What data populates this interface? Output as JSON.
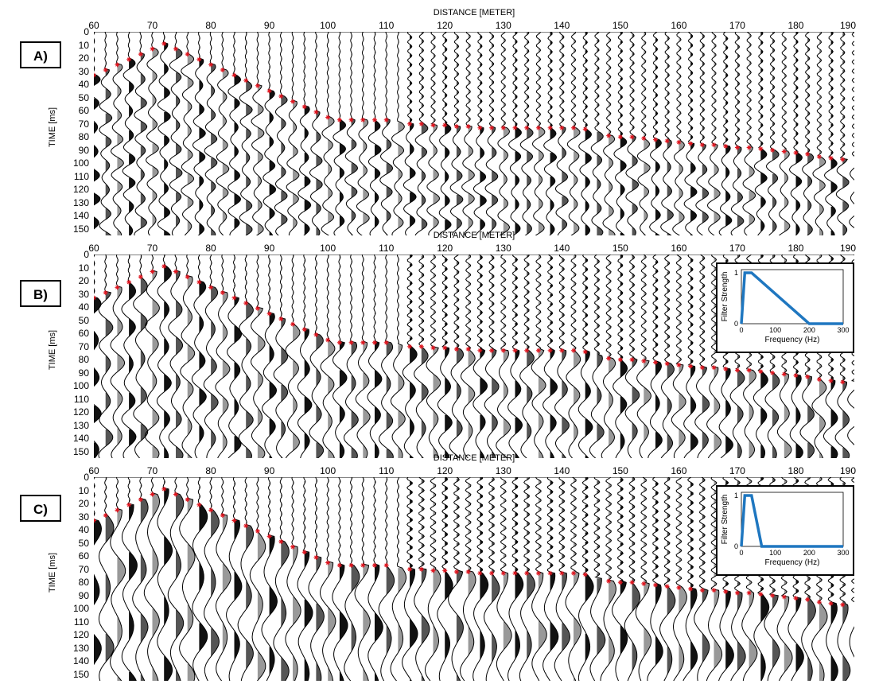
{
  "panels": [
    {
      "id": "A",
      "label": "A)",
      "x_axis_title": "DISTANCE [METER]",
      "y_axis_title": "TIME [ms]",
      "x_ticks": [
        "60",
        "70",
        "80",
        "90",
        "100",
        "110",
        "120",
        "130",
        "140",
        "150",
        "160",
        "170",
        "180",
        "190"
      ],
      "y_ticks": [
        "0",
        "10",
        "20",
        "30",
        "40",
        "50",
        "60",
        "70",
        "80",
        "90",
        "100",
        "110",
        "120",
        "130",
        "140",
        "150"
      ]
    },
    {
      "id": "B",
      "label": "B)",
      "x_axis_title": "DISTANCE [METER]",
      "y_axis_title": "TIME [ms]",
      "x_ticks": [
        "60",
        "70",
        "80",
        "90",
        "100",
        "110",
        "120",
        "130",
        "140",
        "150",
        "160",
        "170",
        "180",
        "190"
      ],
      "y_ticks": [
        "0",
        "10",
        "20",
        "30",
        "40",
        "50",
        "60",
        "70",
        "80",
        "90",
        "100",
        "110",
        "120",
        "130",
        "140",
        "150"
      ],
      "inset": {
        "xlabel": "Frequency (Hz)",
        "ylabel": "Filter Strength",
        "x_ticks": [
          "0",
          "100",
          "200",
          "300"
        ],
        "y_ticks": [
          "0",
          "1"
        ]
      }
    },
    {
      "id": "C",
      "label": "C)",
      "x_axis_title": "DISTANCE [METER]",
      "y_axis_title": "TIME [ms]",
      "x_ticks": [
        "60",
        "70",
        "80",
        "90",
        "100",
        "110",
        "120",
        "130",
        "140",
        "150",
        "160",
        "170",
        "180",
        "190"
      ],
      "y_ticks": [
        "0",
        "10",
        "20",
        "30",
        "40",
        "50",
        "60",
        "70",
        "80",
        "90",
        "100",
        "110",
        "120",
        "130",
        "140",
        "150"
      ],
      "inset": {
        "xlabel": "Frequency (Hz)",
        "ylabel": "Filter Strength",
        "x_ticks": [
          "0",
          "100",
          "200",
          "300"
        ],
        "y_ticks": [
          "0",
          "1"
        ]
      }
    }
  ],
  "chart_data": [
    {
      "type": "seismic-section",
      "panel": "A",
      "xlabel": "DISTANCE [METER]",
      "ylabel": "TIME [ms]",
      "xlim": [
        60,
        190
      ],
      "ylim": [
        0,
        150
      ],
      "y_inverted": true,
      "trace_spacing_m": 2,
      "first_break_picks": {
        "color": "#e0141e",
        "x": [
          60,
          62,
          64,
          66,
          68,
          70,
          72,
          74,
          76,
          78,
          80,
          82,
          84,
          86,
          88,
          90,
          92,
          94,
          96,
          98,
          100,
          102,
          104,
          106,
          108,
          110,
          114,
          116,
          118,
          120,
          122,
          124,
          126,
          128,
          130,
          132,
          134,
          136,
          138,
          140,
          142,
          144,
          148,
          150,
          152,
          154,
          156,
          158,
          160,
          162,
          164,
          166,
          168,
          170,
          172,
          174,
          176,
          178,
          180,
          182,
          184,
          186,
          188
        ],
        "y": [
          33,
          29,
          25,
          21,
          17,
          13,
          9,
          13,
          17,
          21,
          25,
          29,
          33,
          37,
          41,
          45,
          49,
          53,
          57,
          61,
          65,
          67,
          67,
          67,
          67,
          67,
          70,
          70,
          71,
          71,
          72,
          72,
          73,
          73,
          73,
          73,
          73,
          73,
          73,
          73,
          73,
          74,
          79,
          80,
          80,
          81,
          82,
          83,
          84,
          85,
          86,
          86,
          87,
          88,
          88,
          89,
          90,
          91,
          92,
          93,
          95,
          96,
          97
        ]
      }
    },
    {
      "type": "seismic-section",
      "panel": "B",
      "xlabel": "DISTANCE [METER]",
      "ylabel": "TIME [ms]",
      "xlim": [
        60,
        190
      ],
      "ylim": [
        0,
        150
      ],
      "y_inverted": true,
      "trace_spacing_m": 2,
      "first_break_picks": {
        "color": "#e0141e",
        "x": [
          60,
          62,
          64,
          66,
          68,
          70,
          72,
          74,
          76,
          78,
          80,
          82,
          84,
          86,
          88,
          90,
          92,
          94,
          96,
          98,
          100,
          102,
          104,
          106,
          108,
          110,
          114,
          116,
          118,
          120,
          122,
          124,
          126,
          128,
          130,
          132,
          134,
          136,
          138,
          140,
          142,
          144,
          148,
          150,
          152,
          154,
          156,
          158,
          160,
          162,
          164,
          166,
          168,
          170,
          172,
          174,
          176,
          178,
          180,
          182,
          184,
          186,
          188
        ],
        "y": [
          33,
          29,
          25,
          21,
          17,
          13,
          9,
          13,
          17,
          21,
          25,
          29,
          33,
          37,
          41,
          45,
          49,
          53,
          57,
          61,
          65,
          67,
          67,
          67,
          67,
          67,
          70,
          70,
          71,
          71,
          72,
          72,
          73,
          73,
          73,
          73,
          73,
          73,
          73,
          73,
          73,
          74,
          79,
          80,
          80,
          81,
          82,
          83,
          84,
          85,
          86,
          86,
          87,
          88,
          88,
          89,
          90,
          91,
          92,
          93,
          95,
          96,
          97
        ]
      },
      "filter_response": {
        "type": "line",
        "color": "#1f77c0",
        "xlim": [
          0,
          300
        ],
        "ylim": [
          0,
          1
        ],
        "x": [
          0,
          10,
          30,
          200,
          300
        ],
        "y": [
          0,
          1,
          1,
          0,
          0
        ]
      }
    },
    {
      "type": "seismic-section",
      "panel": "C",
      "xlabel": "DISTANCE [METER]",
      "ylabel": "TIME [ms]",
      "xlim": [
        60,
        190
      ],
      "ylim": [
        0,
        150
      ],
      "y_inverted": true,
      "trace_spacing_m": 2,
      "first_break_picks": {
        "color": "#e0141e",
        "x": [
          60,
          62,
          64,
          66,
          68,
          70,
          72,
          74,
          76,
          78,
          80,
          82,
          84,
          86,
          88,
          90,
          92,
          94,
          96,
          98,
          100,
          102,
          104,
          106,
          108,
          110,
          114,
          116,
          118,
          120,
          122,
          124,
          126,
          128,
          130,
          132,
          134,
          136,
          138,
          140,
          142,
          144,
          148,
          150,
          152,
          154,
          156,
          158,
          160,
          162,
          164,
          166,
          168,
          170,
          172,
          174,
          176,
          178,
          180,
          182,
          184,
          186,
          188
        ],
        "y": [
          33,
          29,
          25,
          21,
          17,
          13,
          9,
          13,
          17,
          21,
          25,
          29,
          33,
          37,
          41,
          45,
          49,
          53,
          57,
          61,
          65,
          67,
          67,
          67,
          67,
          67,
          70,
          70,
          71,
          71,
          72,
          72,
          73,
          73,
          73,
          73,
          73,
          73,
          73,
          73,
          73,
          74,
          79,
          80,
          80,
          81,
          82,
          83,
          84,
          85,
          86,
          86,
          87,
          88,
          88,
          89,
          90,
          91,
          92,
          93,
          95,
          96,
          97
        ]
      },
      "filter_response": {
        "type": "line",
        "color": "#1f77c0",
        "xlim": [
          0,
          300
        ],
        "ylim": [
          0,
          1
        ],
        "x": [
          0,
          10,
          30,
          60,
          300
        ],
        "y": [
          0,
          1,
          1,
          0,
          0
        ]
      }
    }
  ]
}
